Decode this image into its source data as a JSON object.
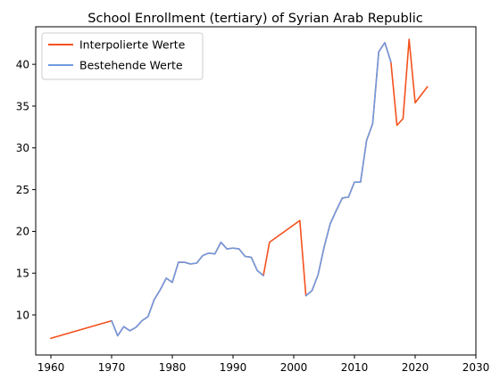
{
  "chart_data": {
    "type": "line",
    "title": "School Enrollment (tertiary) of Syrian Arab Republic",
    "xlabel": "",
    "ylabel": "",
    "xlim": [
      1957.5,
      2030
    ],
    "ylim": [
      5.2,
      44.5
    ],
    "xticks": [
      1960,
      1970,
      1980,
      1990,
      2000,
      2010,
      2020,
      2030
    ],
    "yticks": [
      10,
      15,
      20,
      25,
      30,
      35,
      40
    ],
    "grid": false,
    "legend_position": "top-left",
    "series": [
      {
        "name": "Interpolierte Werte",
        "color": "#f4511e",
        "x": [
          1960,
          1970,
          1971,
          1972,
          1973,
          1974,
          1975,
          1976,
          1977,
          1978,
          1979,
          1980,
          1981,
          1982,
          1983,
          1984,
          1985,
          1986,
          1987,
          1988,
          1989,
          1990,
          1991,
          1992,
          1993,
          1994,
          1995,
          1996,
          2001,
          2002,
          2003,
          2004,
          2005,
          2006,
          2007,
          2008,
          2009,
          2010,
          2011,
          2012,
          2013,
          2014,
          2015,
          2016,
          2017,
          2018,
          2019,
          2020,
          2022
        ],
        "y": [
          7.2,
          9.3,
          7.5,
          8.6,
          8.1,
          8.5,
          9.3,
          9.8,
          11.8,
          13.0,
          14.4,
          13.9,
          16.3,
          16.3,
          16.1,
          16.2,
          17.1,
          17.4,
          17.3,
          18.7,
          17.9,
          18.0,
          17.9,
          17.0,
          16.9,
          15.3,
          14.7,
          18.7,
          21.3,
          12.3,
          12.9,
          14.8,
          18.1,
          20.9,
          22.5,
          24.0,
          24.1,
          25.9,
          25.9,
          30.9,
          32.9,
          41.5,
          42.6,
          40.3,
          32.7,
          33.5,
          43.0,
          35.4,
          37.3
        ]
      },
      {
        "name": "Bestehende Werte",
        "color": "#6f9ae0",
        "segments": [
          {
            "x": [
              1970,
              1971,
              1972,
              1973,
              1974,
              1975,
              1976,
              1977,
              1978,
              1979,
              1980,
              1981,
              1982,
              1983,
              1984,
              1985,
              1986,
              1987,
              1988,
              1989,
              1990,
              1991,
              1992,
              1993,
              1994,
              1995
            ],
            "y": [
              9.3,
              7.5,
              8.6,
              8.1,
              8.5,
              9.3,
              9.8,
              11.8,
              13.0,
              14.4,
              13.9,
              16.3,
              16.3,
              16.1,
              16.2,
              17.1,
              17.4,
              17.3,
              18.7,
              17.9,
              18.0,
              17.9,
              17.0,
              16.9,
              15.3,
              14.7
            ]
          },
          {
            "x": [
              2002,
              2003,
              2004,
              2005,
              2006,
              2007,
              2008,
              2009,
              2010,
              2011,
              2012,
              2013,
              2014,
              2015,
              2016
            ],
            "y": [
              12.3,
              12.9,
              14.8,
              18.1,
              20.9,
              22.5,
              24.0,
              24.1,
              25.9,
              25.9,
              30.9,
              32.9,
              41.5,
              42.6,
              40.3
            ]
          }
        ]
      }
    ]
  }
}
